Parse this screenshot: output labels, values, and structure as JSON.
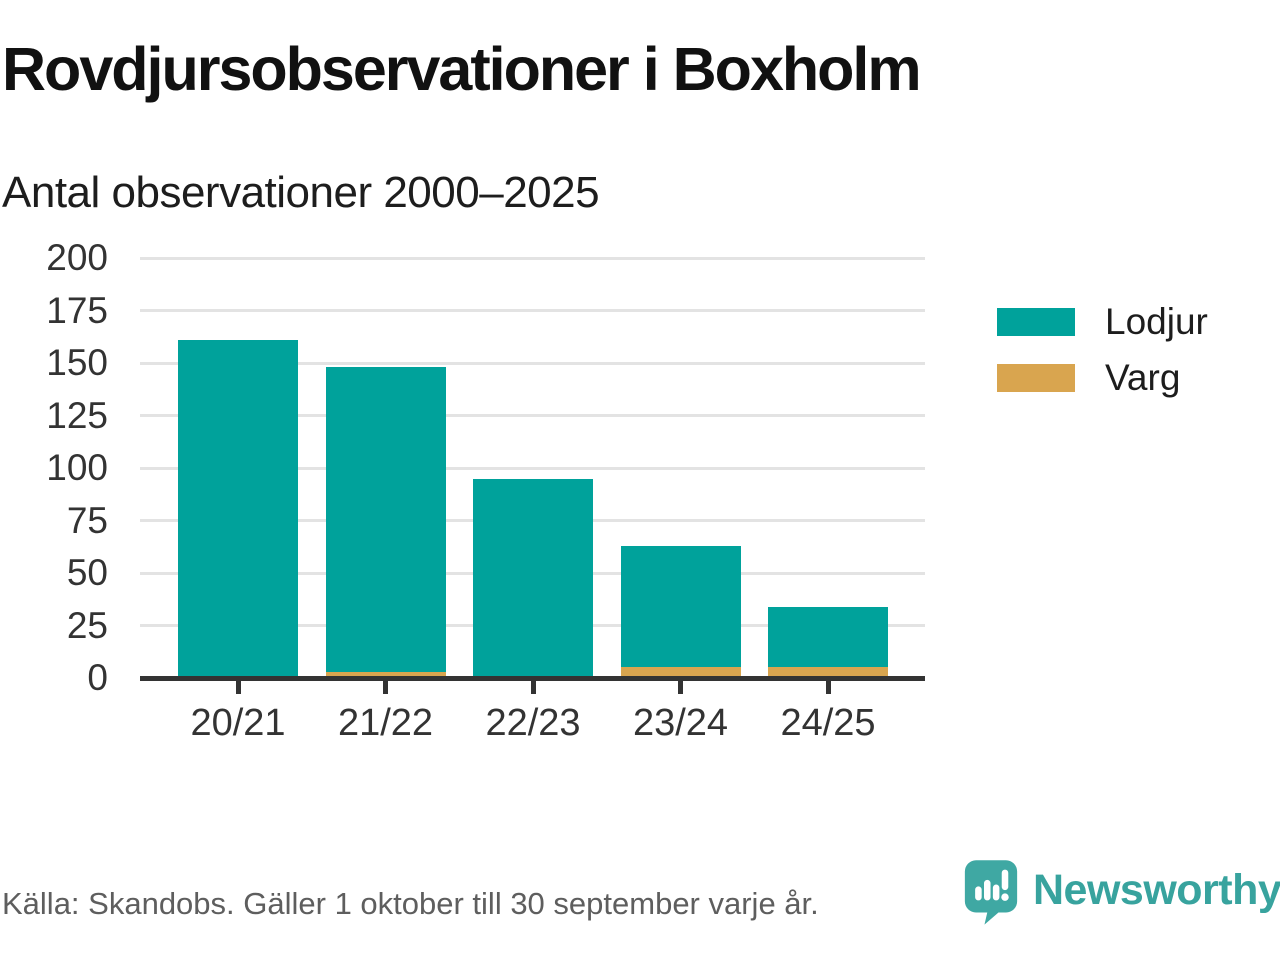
{
  "header": {
    "title": "Rovdjursobservationer i Boxholm",
    "subtitle": "Antal observationer 2000–2025"
  },
  "chart_data": {
    "type": "bar",
    "stacked": true,
    "categories": [
      "20/21",
      "21/22",
      "22/23",
      "23/24",
      "24/25"
    ],
    "series": [
      {
        "name": "Lodjur",
        "color": "#00a29b",
        "values": [
          161,
          145,
          95,
          58,
          29
        ]
      },
      {
        "name": "Varg",
        "color": "#d9a54f",
        "values": [
          0,
          3,
          0,
          5,
          5
        ]
      }
    ],
    "stack_order_bottom_to_top": [
      "Varg",
      "Lodjur"
    ],
    "totals": [
      161,
      148,
      95,
      63,
      34
    ],
    "title": "Rovdjursobservationer i Boxholm",
    "subtitle": "Antal observationer 2000–2025",
    "xlabel": "",
    "ylabel": "",
    "ylim": [
      0,
      200
    ],
    "y_ticks": [
      0,
      25,
      50,
      75,
      100,
      125,
      150,
      175,
      200
    ],
    "grid": "horizontal",
    "legend_position": "right"
  },
  "legend": {
    "items": [
      {
        "label": "Lodjur",
        "color": "#00a29b"
      },
      {
        "label": "Varg",
        "color": "#d9a54f"
      }
    ]
  },
  "footer": {
    "source": "Källa: Skandobs. Gäller 1 oktober till 30 september varje år.",
    "brand": "Newsworthy"
  },
  "colors": {
    "lodjur": "#00a29b",
    "varg": "#d9a54f",
    "gridline": "#e3e3e3",
    "axis": "#333333",
    "text": "#1d1d1d",
    "source_text": "#5e5e5e",
    "logo": "#3fa8a3",
    "brand_text": "#38a39e"
  }
}
